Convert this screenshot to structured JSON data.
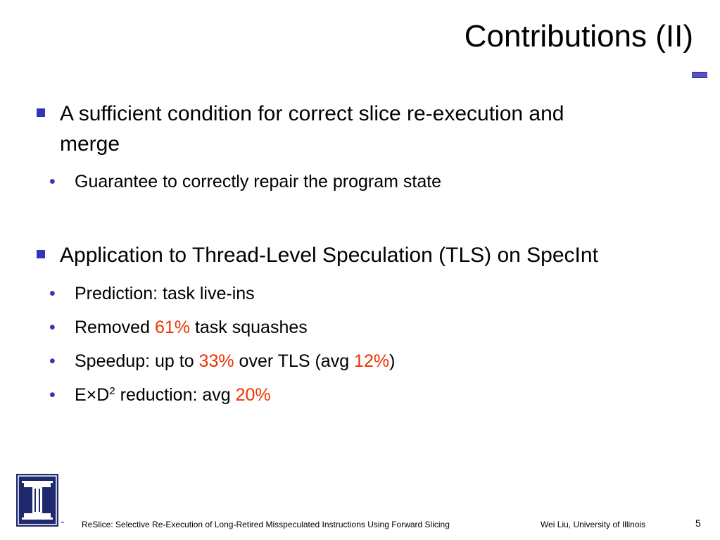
{
  "slide": {
    "title": "Contributions (II)",
    "colors": {
      "accent": "#3434b8",
      "highlight": "#ee3300",
      "logo_navy": "#1f2a6e"
    },
    "bullets": [
      {
        "text_line1": "A sufficient condition for correct slice re-execution and",
        "text_line2": "merge",
        "sub": [
          {
            "text": "Guarantee to correctly repair the program state"
          }
        ]
      },
      {
        "text": "Application to Thread-Level Speculation (TLS) on SpecInt",
        "sub": [
          {
            "text": "Prediction: task live-ins"
          },
          {
            "pre": "Removed ",
            "hl": "61%",
            "post": " task squashes"
          },
          {
            "pre": "Speedup: up to ",
            "hl": "33%",
            "mid": " over TLS (avg ",
            "hl2": "12%",
            "post": ")"
          },
          {
            "pre": "E×D",
            "sup": "2",
            "mid": " reduction: avg ",
            "hl": "20%"
          }
        ]
      }
    ],
    "footer": {
      "paper_title": "ReSlice: Selective Re-Execution of Long-Retired Misspeculated Instructions Using Forward Slicing",
      "author": "Wei Liu, University of Illinois",
      "page_number": "5",
      "logo_mark": "™"
    },
    "icons": {
      "bullet_level1": "square-bullet-icon",
      "bullet_level2": "dot-bullet-icon",
      "logo": "university-of-illinois-logo-icon"
    }
  }
}
